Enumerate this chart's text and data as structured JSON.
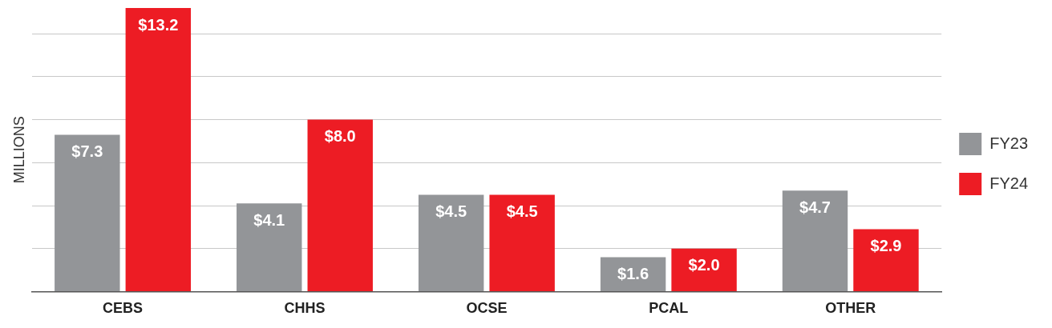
{
  "chart_data": {
    "type": "bar",
    "ylabel": "MILLIONS",
    "categories": [
      "CEBS",
      "CHHS",
      "OCSE",
      "PCAL",
      "OTHER"
    ],
    "series": [
      {
        "name": "FY23",
        "color": "#939598",
        "values": [
          7.3,
          4.1,
          4.5,
          1.6,
          4.7
        ],
        "value_labels": [
          "$7.3",
          "$4.1",
          "$4.5",
          "$1.6",
          "$4.7"
        ]
      },
      {
        "name": "FY24",
        "color": "#ed1c24",
        "values": [
          13.2,
          8.0,
          4.5,
          2.0,
          2.9
        ],
        "value_labels": [
          "$13.2",
          "$8.0",
          "$4.5",
          "$2.0",
          "$2.9"
        ]
      }
    ],
    "ylim": [
      0,
      13.2
    ],
    "yticks": [
      {
        "value": 0,
        "label": null
      },
      {
        "value": 2,
        "label": null
      },
      {
        "value": 4,
        "label": null
      },
      {
        "value": 6,
        "label": null
      },
      {
        "value": 8,
        "label": null
      },
      {
        "value": 10,
        "label": null
      },
      {
        "value": 12,
        "label": null
      }
    ],
    "grid": "y",
    "tick_labels": "x",
    "legend": "right"
  }
}
